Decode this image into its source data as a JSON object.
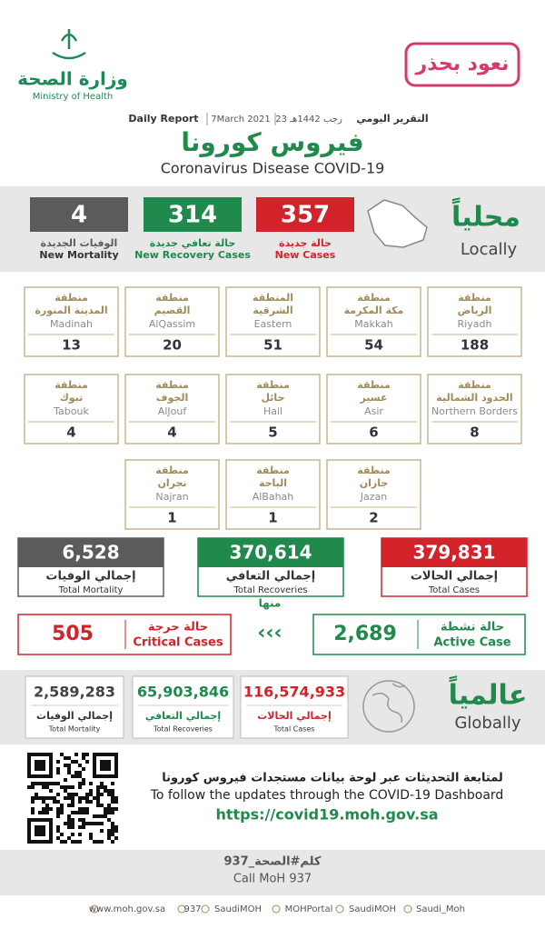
{
  "header": {
    "ministry_ar": "وزارة الصحة",
    "ministry_en": "Ministry of Health",
    "slogan": "نعود بحذر"
  },
  "report": {
    "label_ar": "التقرير اليومي",
    "date_hijri": "23 رجب 1442هـ",
    "date": "7March 2021",
    "label_en": "Daily Report",
    "title_ar": "فيروس كورونا",
    "title_en": "Coronavirus Disease COVID-19"
  },
  "local": {
    "heading_ar": "محلياً",
    "heading_en": "Locally",
    "stats": [
      {
        "value": "357",
        "label_ar": "حالة جديدة",
        "label_en": "New Cases"
      },
      {
        "value": "314",
        "label_ar": "حالة تعافي جديدة",
        "label_en": "New Recovery Cases"
      },
      {
        "value": "4",
        "label_ar": "الوفيات الجديدة",
        "label_en": "New Mortality"
      }
    ]
  },
  "regions": [
    {
      "prefix": "منطقة",
      "name_ar": "الرياض",
      "name_en": "Riyadh",
      "value": "188"
    },
    {
      "prefix": "منطقة",
      "name_ar": "مكة المكرمة",
      "name_en": "Makkah",
      "value": "54"
    },
    {
      "prefix": "المنطقة",
      "name_ar": "الشرقية",
      "name_en": "Eastern",
      "value": "51"
    },
    {
      "prefix": "منطقة",
      "name_ar": "القصيم",
      "name_en": "AlQassim",
      "value": "20"
    },
    {
      "prefix": "منطقة",
      "name_ar": "المدينة المنورة",
      "name_en": "Madinah",
      "value": "13"
    },
    {
      "prefix": "منطقة",
      "name_ar": "الحدود الشمالية",
      "name_en": "Northern Borders",
      "value": "8"
    },
    {
      "prefix": "منطقة",
      "name_ar": "عسير",
      "name_en": "Asir",
      "value": "6"
    },
    {
      "prefix": "منطقة",
      "name_ar": "حائل",
      "name_en": "Hail",
      "value": "5"
    },
    {
      "prefix": "منطقة",
      "name_ar": "الجوف",
      "name_en": "AlJouf",
      "value": "4"
    },
    {
      "prefix": "منطقة",
      "name_ar": "تبوك",
      "name_en": "Tabouk",
      "value": "4"
    },
    {
      "prefix": "منطقة",
      "name_ar": "جازان",
      "name_en": "Jazan",
      "value": "2"
    },
    {
      "prefix": "منطقة",
      "name_ar": "الباحة",
      "name_en": "AlBahah",
      "value": "1"
    },
    {
      "prefix": "منطقة",
      "name_ar": "نجران",
      "name_en": "Najran",
      "value": "1"
    }
  ],
  "totals": [
    {
      "value": "379,831",
      "label_ar": "إجمالي الحالات",
      "label_en": "Total Cases"
    },
    {
      "value": "370,614",
      "label_ar": "إجمالي التعافي",
      "label_en": "Total Recoveries"
    },
    {
      "value": "6,528",
      "label_ar": "إجمالي الوفيات",
      "label_en": "Total Mortality"
    }
  ],
  "breakdown": {
    "of_which": "منها",
    "active": {
      "value": "2,689",
      "label_ar": "حالة نشطة",
      "label_en": "Active Case"
    },
    "critical": {
      "value": "505",
      "label_ar": "حالة حرجة",
      "label_en": "Critical Cases"
    }
  },
  "global": {
    "heading_ar": "عالمياً",
    "heading_en": "Globally",
    "stats": [
      {
        "value": "116,574,933",
        "label_ar": "إجمالي الحالات",
        "label_en": "Total Cases"
      },
      {
        "value": "65,903,846",
        "label_ar": "إجمالي التعافي",
        "label_en": "Total Recoveries"
      },
      {
        "value": "2,589,283",
        "label_ar": "إجمالي الوفيات",
        "label_en": "Total Mortality"
      }
    ]
  },
  "dashboard": {
    "line_ar": "لمتابعة التحديثات عبر لوحة بيانات مستجدات فيروس كورونا",
    "line_en": "To follow the updates through the COVID-19 Dashboard",
    "url": "https://covid19.moh.gov.sa"
  },
  "call": {
    "hashtag": "كلم#الصحة_937",
    "label": "Call MoH 937"
  },
  "footer": [
    "www.moh.gov.sa",
    "937",
    "SaudiMOH",
    "MOHPortal",
    "SaudiMOH",
    "Saudi_Moh"
  ]
}
